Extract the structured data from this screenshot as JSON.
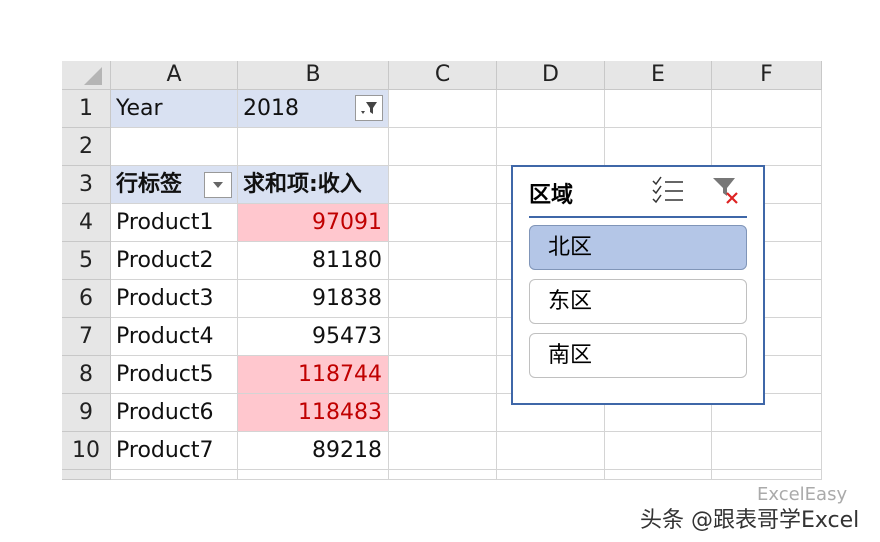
{
  "columns": [
    "A",
    "B",
    "C",
    "D",
    "E",
    "F"
  ],
  "rows": [
    "1",
    "2",
    "3",
    "4",
    "5",
    "6",
    "7",
    "8",
    "9",
    "10"
  ],
  "filter": {
    "label": "Year",
    "value": "2018"
  },
  "pivot": {
    "row_label": "行标签",
    "value_label": "求和项:收入",
    "items": [
      {
        "name": "Product1",
        "value": "97091",
        "highlight": true
      },
      {
        "name": "Product2",
        "value": "81180",
        "highlight": false
      },
      {
        "name": "Product3",
        "value": "91838",
        "highlight": false
      },
      {
        "name": "Product4",
        "value": "95473",
        "highlight": false
      },
      {
        "name": "Product5",
        "value": "118744",
        "highlight": true
      },
      {
        "name": "Product6",
        "value": "118483",
        "highlight": true
      },
      {
        "name": "Product7",
        "value": "89218",
        "highlight": false
      }
    ]
  },
  "slicer": {
    "title": "区域",
    "items": [
      {
        "label": "北区",
        "selected": true
      },
      {
        "label": "东区",
        "selected": false
      },
      {
        "label": "南区",
        "selected": false
      }
    ]
  },
  "watermark": {
    "main": "头条 @跟表哥学Excel",
    "sub": "ExcelEasy"
  },
  "colors": {
    "highlight_fill": "#ffc7ce",
    "highlight_text": "#c00000",
    "pivot_header": "#d9e1f2",
    "slicer_selected": "#b4c6e7"
  }
}
